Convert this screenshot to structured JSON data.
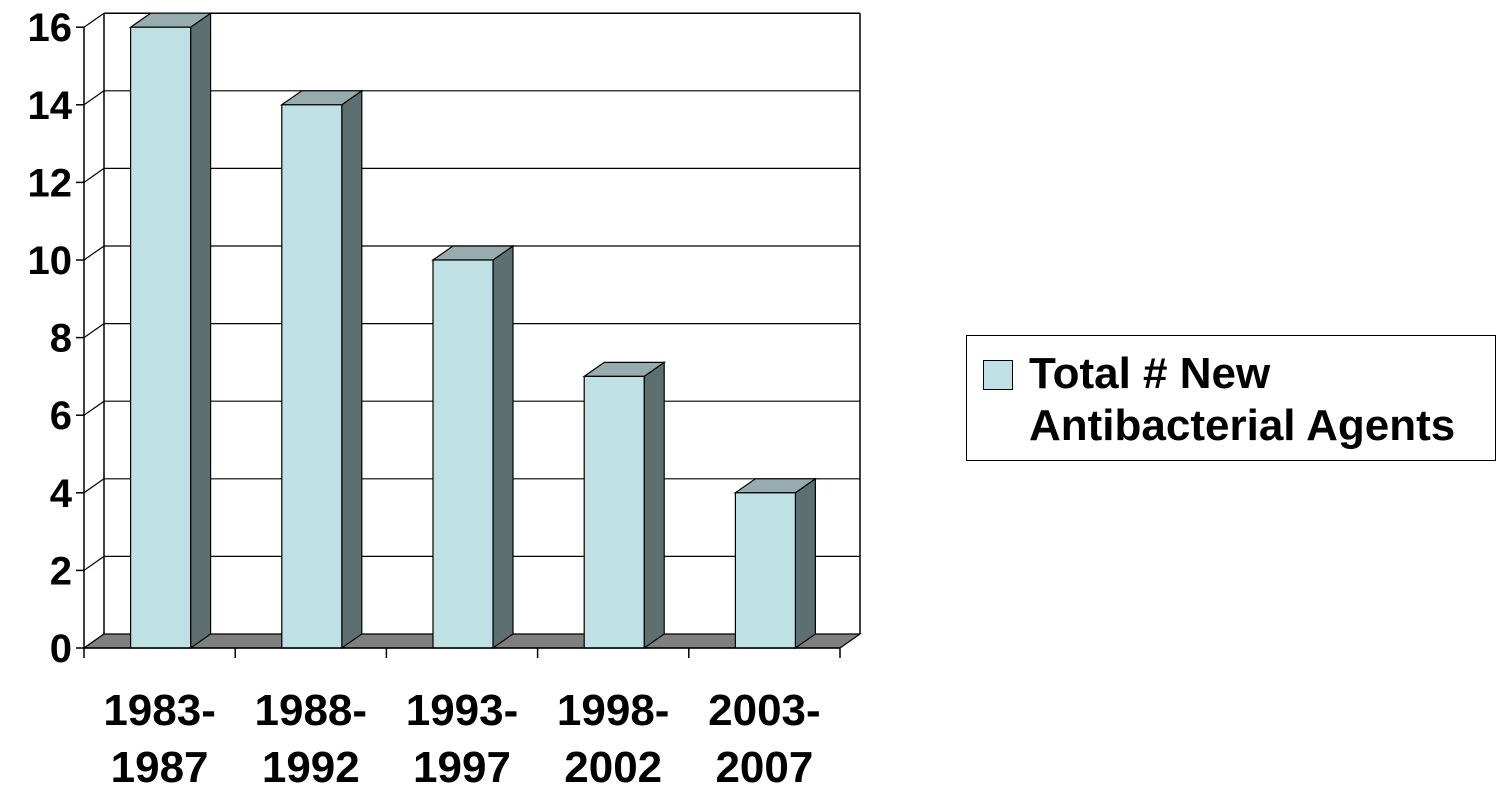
{
  "chart_data": {
    "type": "bar",
    "categories": [
      [
        "1983-",
        "1987"
      ],
      [
        "1988-",
        "1992"
      ],
      [
        "1993-",
        "1997"
      ],
      [
        "1998-",
        "2002"
      ],
      [
        "2003-",
        "2007"
      ]
    ],
    "series": [
      {
        "name": "Total # New Antibacterial Agents",
        "values": [
          16,
          14,
          10,
          7,
          4
        ]
      }
    ],
    "yticks": [
      "0",
      "2",
      "4",
      "6",
      "8",
      "10",
      "12",
      "14",
      "16"
    ],
    "ylim": [
      0,
      16
    ],
    "grid": true,
    "three_d": true,
    "legend_position": "right",
    "colors": {
      "bar_front": "#bfe1e3",
      "bar_top": "#97acae",
      "bar_side": "#5e6f72",
      "floor": "#7f7f7f",
      "grid": "#000000"
    }
  },
  "legend": {
    "label": "Total # New Antibacterial Agents"
  }
}
